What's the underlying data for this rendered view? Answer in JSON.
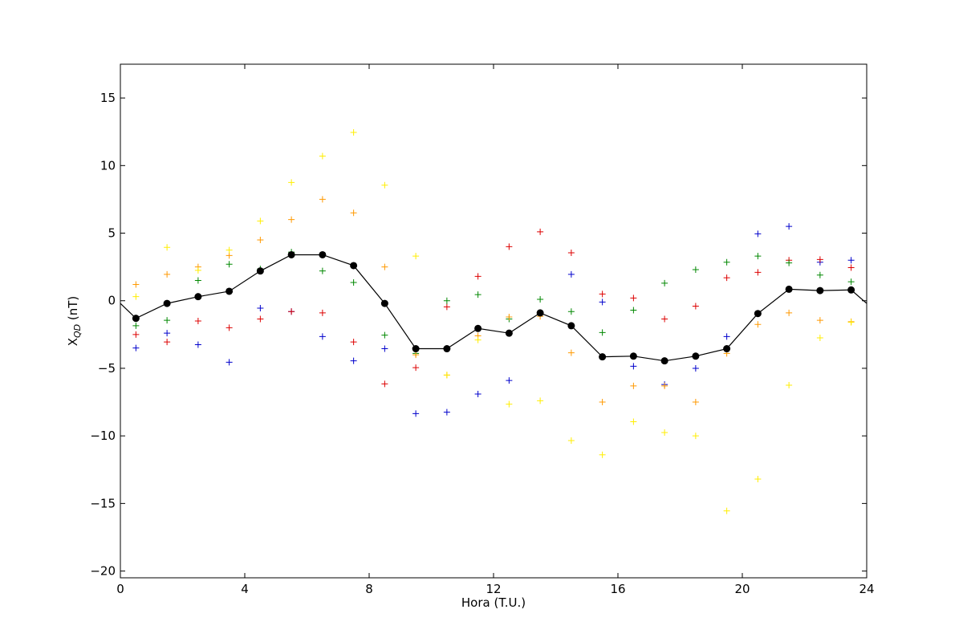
{
  "chart_data": {
    "type": "scatter",
    "xlabel": "Hora (T.U.)",
    "ylabel": "X",
    "ylabel_sub": "QD",
    "ylabel_unit": " (nT)",
    "xlim": [
      0,
      24
    ],
    "ylim": [
      -20.5,
      17.5
    ],
    "xticks": [
      0,
      4,
      8,
      12,
      16,
      20,
      24
    ],
    "yticks": [
      -20,
      -15,
      -10,
      -5,
      0,
      5,
      10,
      15
    ],
    "grid": false,
    "x": [
      0.5,
      1.5,
      2.5,
      3.5,
      4.5,
      5.5,
      6.5,
      7.5,
      8.5,
      9.5,
      10.5,
      11.5,
      12.5,
      13.5,
      14.5,
      15.5,
      16.5,
      17.5,
      18.5,
      19.5,
      20.5,
      21.5,
      22.5,
      23.5
    ],
    "mean_line": {
      "color": "#000000",
      "x_start": 0,
      "y_start": -0.2,
      "x_end": 24,
      "y_end": -0.2,
      "values": [
        -1.3,
        -0.2,
        0.3,
        0.7,
        2.2,
        3.4,
        3.4,
        2.6,
        -0.2,
        -3.55,
        -3.55,
        -2.05,
        -2.4,
        -0.9,
        -1.85,
        -4.15,
        -4.1,
        -4.45,
        -4.1,
        -3.55,
        -0.95,
        0.85,
        0.75,
        0.8
      ]
    },
    "scatter_series": [
      {
        "color": "#0000cc",
        "values": [
          -3.5,
          -2.4,
          -3.25,
          -4.55,
          -0.55,
          -0.8,
          -2.65,
          -4.45,
          -3.55,
          -8.35,
          -8.25,
          -6.9,
          -5.9,
          null,
          1.95,
          -0.1,
          -4.85,
          -6.2,
          -5.0,
          -2.65,
          4.95,
          5.5,
          2.85,
          3.0
        ]
      },
      {
        "color": "#dd0000",
        "values": [
          -2.5,
          -3.05,
          -1.5,
          -2.0,
          -1.35,
          -0.8,
          -0.9,
          -3.05,
          -6.15,
          -4.95,
          -0.45,
          1.8,
          4.0,
          5.1,
          3.55,
          0.5,
          0.2,
          -1.35,
          -0.4,
          1.7,
          2.1,
          3.0,
          3.05,
          2.45
        ]
      },
      {
        "color": "#008800",
        "values": [
          -1.85,
          -1.45,
          1.5,
          2.7,
          2.35,
          3.6,
          2.2,
          1.35,
          -2.55,
          -3.9,
          0.0,
          0.45,
          -1.35,
          0.1,
          -0.8,
          -2.35,
          -0.7,
          1.3,
          2.3,
          2.85,
          3.3,
          2.8,
          1.9,
          1.4
        ]
      },
      {
        "color": "#ff9900",
        "values": [
          1.2,
          1.95,
          2.5,
          3.35,
          4.5,
          6.0,
          7.5,
          6.5,
          2.5,
          -4.0,
          -5.5,
          -2.6,
          -1.2,
          -1.15,
          -3.85,
          -7.5,
          -6.3,
          -6.3,
          -7.5,
          -3.9,
          -1.75,
          -0.9,
          -1.45,
          -1.55
        ]
      },
      {
        "color": "#ffee00",
        "values": [
          0.3,
          3.95,
          2.25,
          3.75,
          5.9,
          8.75,
          10.7,
          12.45,
          8.55,
          3.3,
          -5.5,
          -2.9,
          -7.65,
          -7.4,
          -10.35,
          -11.4,
          -8.95,
          -9.75,
          -10.0,
          -15.55,
          -13.2,
          -6.25,
          -2.75,
          -1.6
        ]
      }
    ]
  }
}
